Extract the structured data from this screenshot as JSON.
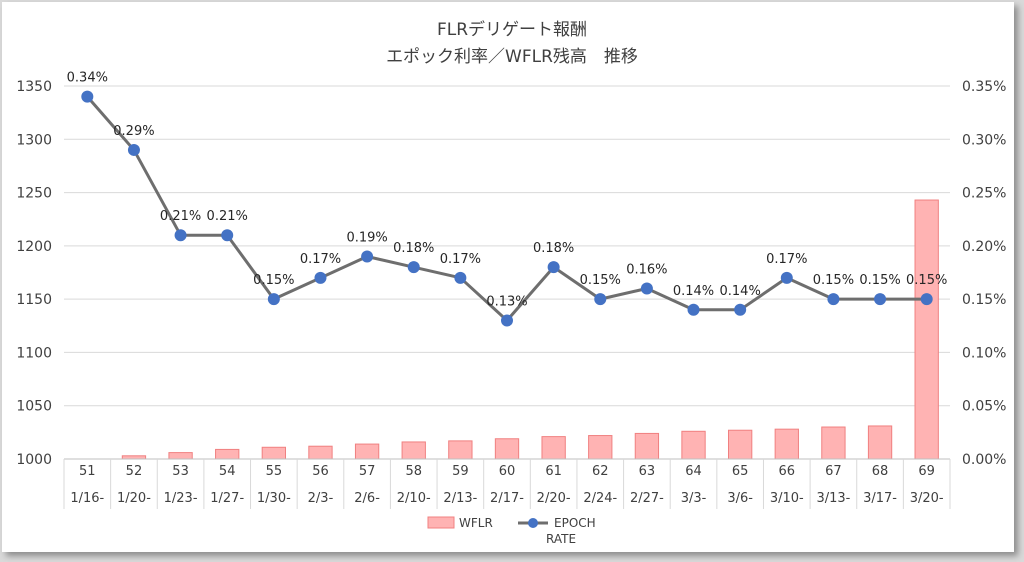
{
  "chart_data": {
    "type": "bar+line",
    "title_lines": [
      "FLRデリゲート報酬",
      "エポック利率／WFLR残高　推移"
    ],
    "categories": [
      "51",
      "52",
      "53",
      "54",
      "55",
      "56",
      "57",
      "58",
      "59",
      "60",
      "61",
      "62",
      "63",
      "64",
      "65",
      "66",
      "67",
      "68",
      "69"
    ],
    "dates": [
      "1/16-",
      "1/20-",
      "1/23-",
      "1/27-",
      "1/30-",
      "2/3-",
      "2/6-",
      "2/10-",
      "2/13-",
      "2/17-",
      "2/20-",
      "2/24-",
      "2/27-",
      "3/3-",
      "3/6-",
      "3/10-",
      "3/13-",
      "3/17-",
      "3/20-"
    ],
    "series": [
      {
        "name": "WFLR",
        "type": "bar",
        "axis": "left",
        "color": "#ffb3b3",
        "edge_color": "#f08080",
        "values": [
          1000,
          1003,
          1006,
          1009,
          1011,
          1012,
          1014,
          1016,
          1017,
          1019,
          1021,
          1022,
          1024,
          1026,
          1027,
          1028,
          1030,
          1031,
          1243
        ]
      },
      {
        "name": "EPOCH RATE",
        "type": "line",
        "axis": "right",
        "color": "#4472c4",
        "line_color": "#6e6e6e",
        "values": [
          0.34,
          0.29,
          0.21,
          0.21,
          0.15,
          0.17,
          0.19,
          0.18,
          0.17,
          0.13,
          0.18,
          0.15,
          0.16,
          0.14,
          0.14,
          0.17,
          0.15,
          0.15,
          0.15
        ],
        "labels": [
          "0.34%",
          "0.29%",
          "0.21%",
          "0.21%",
          "0.15%",
          "0.17%",
          "0.19%",
          "0.18%",
          "0.17%",
          "0.13%",
          "0.18%",
          "0.15%",
          "0.16%",
          "0.14%",
          "0.14%",
          "0.17%",
          "0.15%",
          "0.15%",
          "0.15%"
        ]
      }
    ],
    "left_axis": {
      "min": 1000,
      "max": 1350,
      "ticks": [
        "1000",
        "1050",
        "1100",
        "1150",
        "1200",
        "1250",
        "1300",
        "1350"
      ]
    },
    "right_axis": {
      "min": 0,
      "max": 0.35,
      "ticks": [
        "0.00%",
        "0.05%",
        "0.10%",
        "0.15%",
        "0.20%",
        "0.25%",
        "0.30%",
        "0.35%"
      ]
    },
    "grid": true,
    "legend": {
      "position": "bottom",
      "items": [
        "WFLR",
        "EPOCH RATE"
      ]
    }
  }
}
